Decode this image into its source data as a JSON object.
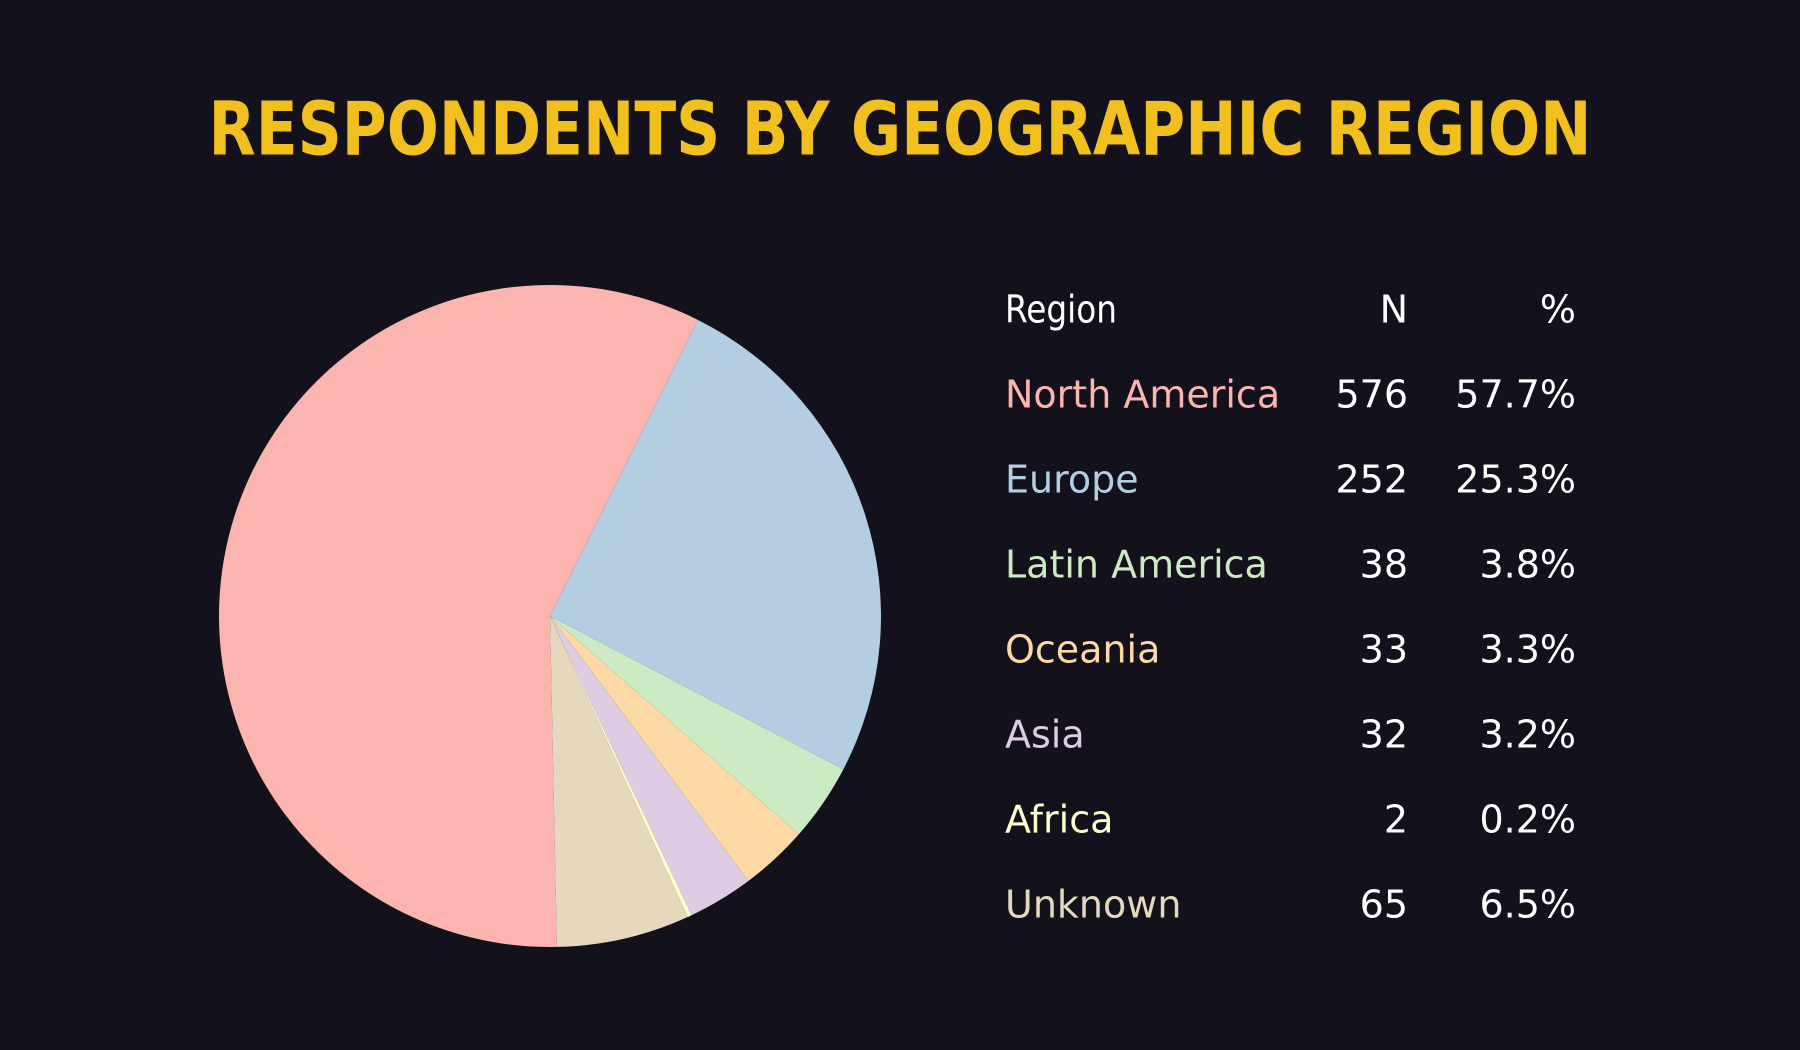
{
  "chart_data": {
    "type": "pie",
    "title": "RESPONDENTS BY GEOGRAPHIC REGION",
    "columns": [
      "Region",
      "N",
      "%"
    ],
    "categories": [
      "North America",
      "Europe",
      "Latin America",
      "Oceania",
      "Asia",
      "Africa",
      "Unknown"
    ],
    "counts": [
      576,
      252,
      38,
      33,
      32,
      2,
      65
    ],
    "values": [
      57.7,
      25.3,
      3.8,
      3.3,
      3.2,
      0.2,
      6.5
    ],
    "value_labels": [
      "57.7%",
      "25.3%",
      "3.8%",
      "3.3%",
      "3.2%",
      "0.2%",
      "6.5%"
    ],
    "colors": [
      "#fbb4ae",
      "#b3cde3",
      "#ccebc5",
      "#fed9a6",
      "#decbe4",
      "#ffffcc",
      "#e5d8bd"
    ]
  }
}
